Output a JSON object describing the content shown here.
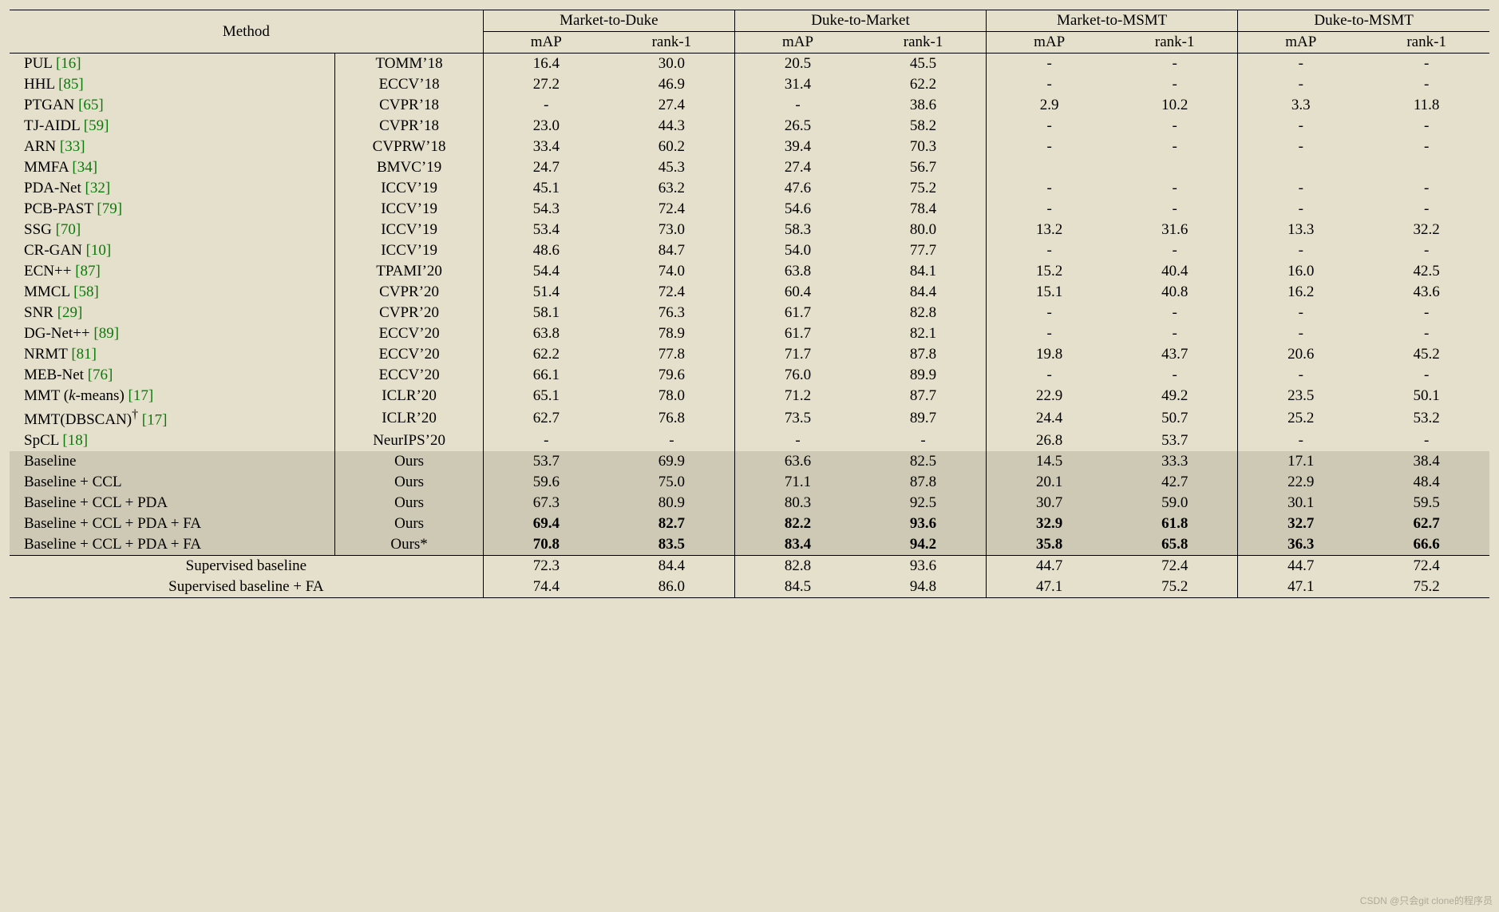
{
  "table": {
    "background_color": "#e5e0cb",
    "shade_color": "#cdc9b4",
    "cite_color": "#0a7a0a",
    "font_family": "Times New Roman",
    "font_size_pt": 14,
    "header": {
      "method_label": "Method",
      "groups": [
        "Market-to-Duke",
        "Duke-to-Market",
        "Market-to-MSMT",
        "Duke-to-MSMT"
      ],
      "sub": [
        "mAP",
        "rank-1"
      ]
    },
    "rows": [
      {
        "method": "PUL",
        "cite": "[16]",
        "venue": "TOMM’18",
        "vals": [
          "16.4",
          "30.0",
          "20.5",
          "45.5",
          "-",
          "-",
          "-",
          "-"
        ]
      },
      {
        "method": "HHL",
        "cite": "[85]",
        "venue": "ECCV’18",
        "vals": [
          "27.2",
          "46.9",
          "31.4",
          "62.2",
          "-",
          "-",
          "-",
          "-"
        ]
      },
      {
        "method": "PTGAN",
        "cite": "[65]",
        "venue": "CVPR’18",
        "vals": [
          "-",
          "27.4",
          "-",
          "38.6",
          "2.9",
          "10.2",
          "3.3",
          "11.8"
        ]
      },
      {
        "method": "TJ-AIDL",
        "cite": "[59]",
        "venue": "CVPR’18",
        "vals": [
          "23.0",
          "44.3",
          "26.5",
          "58.2",
          "-",
          "-",
          "-",
          "-"
        ]
      },
      {
        "method": "ARN",
        "cite": "[33]",
        "venue": "CVPRW’18",
        "vals": [
          "33.4",
          "60.2",
          "39.4",
          "70.3",
          "-",
          "-",
          "-",
          "-"
        ]
      },
      {
        "method": "MMFA",
        "cite": "[34]",
        "venue": "BMVC’19",
        "vals": [
          "24.7",
          "45.3",
          "27.4",
          "56.7",
          "",
          "",
          "",
          ""
        ]
      },
      {
        "method": "PDA-Net",
        "cite": "[32]",
        "venue": "ICCV’19",
        "vals": [
          "45.1",
          "63.2",
          "47.6",
          "75.2",
          "-",
          "-",
          "-",
          "-"
        ]
      },
      {
        "method": "PCB-PAST",
        "cite": "[79]",
        "venue": "ICCV’19",
        "vals": [
          "54.3",
          "72.4",
          "54.6",
          "78.4",
          "-",
          "-",
          "-",
          "-"
        ]
      },
      {
        "method": "SSG",
        "cite": "[70]",
        "venue": "ICCV’19",
        "vals": [
          "53.4",
          "73.0",
          "58.3",
          "80.0",
          "13.2",
          "31.6",
          "13.3",
          "32.2"
        ]
      },
      {
        "method": "CR-GAN",
        "cite": "[10]",
        "venue": "ICCV’19",
        "vals": [
          "48.6",
          "84.7",
          "54.0",
          "77.7",
          "-",
          "-",
          "-",
          "-"
        ]
      },
      {
        "method": "ECN++",
        "cite": "[87]",
        "venue": "TPAMI’20",
        "vals": [
          "54.4",
          "74.0",
          "63.8",
          "84.1",
          "15.2",
          "40.4",
          "16.0",
          "42.5"
        ]
      },
      {
        "method": "MMCL",
        "cite": "[58]",
        "venue": "CVPR’20",
        "vals": [
          "51.4",
          "72.4",
          "60.4",
          "84.4",
          "15.1",
          "40.8",
          "16.2",
          "43.6"
        ]
      },
      {
        "method": "SNR",
        "cite": "[29]",
        "venue": "CVPR’20",
        "vals": [
          "58.1",
          "76.3",
          "61.7",
          "82.8",
          "-",
          "-",
          "-",
          "-"
        ]
      },
      {
        "method": "DG-Net++",
        "cite": "[89]",
        "venue": "ECCV’20",
        "vals": [
          "63.8",
          "78.9",
          "61.7",
          "82.1",
          "-",
          "-",
          "-",
          "-"
        ]
      },
      {
        "method": "NRMT",
        "cite": "[81]",
        "venue": "ECCV’20",
        "vals": [
          "62.2",
          "77.8",
          "71.7",
          "87.8",
          "19.8",
          "43.7",
          "20.6",
          "45.2"
        ]
      },
      {
        "method": "MEB-Net",
        "cite": "[76]",
        "venue": "ECCV’20",
        "vals": [
          "66.1",
          "79.6",
          "76.0",
          "89.9",
          "-",
          "-",
          "-",
          "-"
        ]
      },
      {
        "method_html": "MMT (<i>k</i>-means)",
        "cite": "[17]",
        "venue": "ICLR’20",
        "vals": [
          "65.1",
          "78.0",
          "71.2",
          "87.7",
          "22.9",
          "49.2",
          "23.5",
          "50.1"
        ]
      },
      {
        "method_html": "MMT(DBSCAN)<sup>†</sup>",
        "cite": "[17]",
        "venue": "ICLR’20",
        "vals": [
          "62.7",
          "76.8",
          "73.5",
          "89.7",
          "24.4",
          "50.7",
          "25.2",
          "53.2"
        ]
      },
      {
        "method": "SpCL",
        "cite": "[18]",
        "venue": "NeurIPS’20",
        "vals": [
          "-",
          "-",
          "-",
          "-",
          "26.8",
          "53.7",
          "-",
          "-"
        ]
      },
      {
        "method": "Baseline",
        "venue": "Ours",
        "shade": true,
        "vals": [
          "53.7",
          "69.9",
          "63.6",
          "82.5",
          "14.5",
          "33.3",
          "17.1",
          "38.4"
        ]
      },
      {
        "method": "Baseline + CCL",
        "venue": "Ours",
        "shade": true,
        "vals": [
          "59.6",
          "75.0",
          "71.1",
          "87.8",
          "20.1",
          "42.7",
          "22.9",
          "48.4"
        ]
      },
      {
        "method": "Baseline + CCL + PDA",
        "venue": "Ours",
        "shade": true,
        "vals": [
          "67.3",
          "80.9",
          "80.3",
          "92.5",
          "30.7",
          "59.0",
          "30.1",
          "59.5"
        ]
      },
      {
        "method": "Baseline + CCL + PDA + FA",
        "venue": "Ours",
        "shade": true,
        "bold": true,
        "vals": [
          "69.4",
          "82.7",
          "82.2",
          "93.6",
          "32.9",
          "61.8",
          "32.7",
          "62.7"
        ]
      },
      {
        "method": "Baseline + CCL + PDA + FA",
        "venue": "Ours*",
        "shade": true,
        "bold": true,
        "vals": [
          "70.8",
          "83.5",
          "83.4",
          "94.2",
          "35.8",
          "65.8",
          "36.3",
          "66.6"
        ]
      }
    ],
    "footer_rows": [
      {
        "label": "Supervised baseline",
        "vals": [
          "72.3",
          "84.4",
          "82.8",
          "93.6",
          "44.7",
          "72.4",
          "44.7",
          "72.4"
        ]
      },
      {
        "label": "Supervised baseline + FA",
        "vals": [
          "74.4",
          "86.0",
          "84.5",
          "94.8",
          "47.1",
          "75.2",
          "47.1",
          "75.2"
        ]
      }
    ]
  },
  "watermark": "CSDN @只会git clone的程序员"
}
